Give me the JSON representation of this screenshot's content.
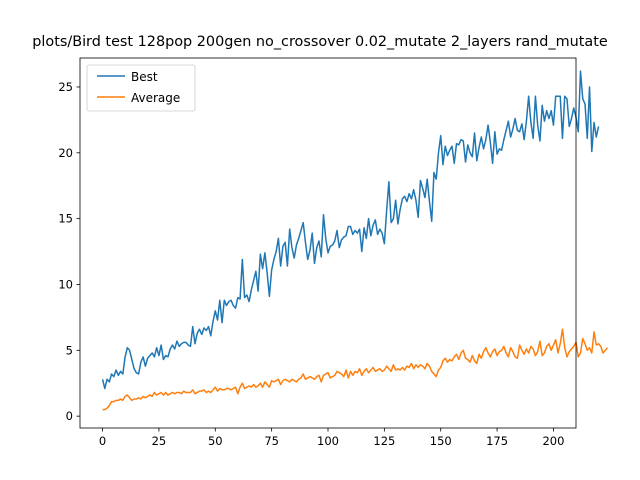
{
  "chart_data": {
    "type": "line",
    "title": "plots/Bird test 128pop 200gen no_crossover 0.02_mutate 2_layers rand_mutate",
    "xlabel": "",
    "ylabel": "",
    "xlim": [
      -10,
      210
    ],
    "ylim": [
      -0.9,
      27.2
    ],
    "xticks": [
      0,
      25,
      50,
      75,
      100,
      125,
      150,
      175,
      200
    ],
    "yticks": [
      0,
      5,
      10,
      15,
      20,
      25
    ],
    "grid": false,
    "legend_position": "upper-left",
    "series": [
      {
        "name": "Best",
        "color": "#1f77b4",
        "values": [
          2.8,
          2.1,
          2.8,
          2.6,
          3.2,
          3.0,
          3.5,
          3.1,
          3.4,
          3.2,
          4.5,
          5.2,
          5.0,
          4.3,
          3.6,
          3.3,
          3.2,
          4.1,
          4.5,
          3.8,
          4.4,
          4.6,
          4.8,
          4.5,
          5.2,
          4.6,
          5.4,
          4.3,
          4.6,
          4.5,
          5.1,
          5.4,
          5.1,
          5.7,
          5.3,
          5.5,
          5.6,
          5.6,
          5.4,
          5.3,
          6.8,
          5.5,
          6.3,
          6.6,
          6.2,
          6.7,
          6.5,
          6.8,
          6.1,
          7.2,
          8.0,
          7.3,
          8.8,
          7.1,
          8.8,
          8.4,
          8.7,
          8.8,
          8.4,
          8.2,
          9.0,
          8.9,
          11.9,
          9.0,
          9.2,
          8.7,
          9.6,
          10.3,
          11.0,
          9.5,
          12.3,
          11.2,
          12.4,
          10.9,
          9.1,
          11.1,
          11.9,
          12.5,
          13.5,
          11.4,
          12.9,
          13.2,
          11.4,
          14.2,
          12.8,
          12.0,
          13.0,
          13.5,
          14.1,
          14.7,
          13.2,
          11.9,
          12.6,
          13.9,
          11.6,
          12.8,
          13.3,
          12.1,
          15.3,
          13.5,
          12.4,
          12.9,
          13.0,
          13.3,
          14.1,
          12.8,
          13.4,
          13.6,
          13.7,
          14.4,
          14.4,
          13.8,
          14.1,
          13.9,
          14.2,
          12.5,
          14.3,
          13.5,
          15.0,
          13.7,
          14.5,
          14.9,
          13.8,
          14.2,
          13.9,
          13.1,
          15.6,
          17.8,
          14.7,
          15.0,
          16.4,
          14.6,
          15.7,
          16.5,
          16.7,
          16.3,
          16.9,
          16.5,
          17.2,
          16.4,
          15.1,
          17.9,
          17.3,
          16.6,
          18.0,
          16.3,
          14.8,
          18.5,
          18.0,
          20.0,
          21.3,
          19.1,
          20.5,
          19.8,
          20.2,
          20.5,
          19.2,
          20.7,
          20.6,
          21.0,
          20.9,
          19.3,
          20.6,
          20.0,
          19.7,
          21.5,
          19.4,
          20.4,
          21.2,
          20.3,
          21.0,
          22.1,
          20.8,
          19.2,
          21.6,
          19.9,
          20.3,
          20.2,
          21.0,
          21.7,
          22.4,
          21.2,
          21.8,
          22.6,
          21.7,
          21.6,
          22.2,
          21.0,
          22.4,
          24.3,
          22.3,
          21.1,
          24.3,
          22.1,
          20.9,
          23.6,
          22.4,
          23.2,
          22.6,
          23.2,
          22.1,
          24.3,
          24.3,
          24.3,
          21.1,
          24.3,
          24.1,
          22.0,
          22.6,
          23.4,
          22.7,
          21.6,
          26.2,
          24.1,
          23.7,
          21.1,
          25.0,
          20.1,
          22.3,
          21.2,
          22.0
        ]
      },
      {
        "name": "Average",
        "color": "#ff7f0e",
        "values": [
          0.5,
          0.5,
          0.6,
          0.8,
          1.1,
          1.1,
          1.2,
          1.2,
          1.3,
          1.2,
          1.5,
          1.6,
          1.4,
          1.2,
          1.3,
          1.3,
          1.4,
          1.3,
          1.5,
          1.4,
          1.5,
          1.6,
          1.5,
          1.8,
          1.6,
          1.7,
          1.8,
          1.6,
          1.8,
          1.6,
          1.7,
          1.8,
          1.7,
          1.8,
          1.8,
          1.7,
          1.9,
          1.8,
          1.8,
          1.8,
          2.0,
          1.7,
          1.8,
          1.9,
          1.9,
          2.0,
          1.8,
          1.9,
          1.8,
          2.0,
          2.2,
          1.9,
          2.1,
          2.0,
          2.0,
          2.1,
          2.1,
          2.0,
          2.1,
          2.2,
          1.7,
          2.2,
          2.5,
          2.1,
          2.2,
          2.3,
          2.2,
          2.4,
          2.2,
          2.3,
          2.5,
          2.2,
          2.6,
          2.4,
          2.2,
          2.7,
          2.6,
          2.7,
          2.8,
          2.4,
          2.7,
          2.8,
          2.7,
          2.6,
          2.8,
          2.7,
          2.6,
          2.8,
          2.9,
          3.2,
          2.8,
          2.9,
          3.0,
          2.9,
          2.8,
          3.0,
          3.1,
          2.6,
          3.1,
          3.2,
          3.3,
          2.9,
          3.0,
          3.1,
          3.4,
          3.3,
          3.2,
          3.0,
          3.5,
          2.9,
          3.4,
          3.1,
          3.4,
          3.3,
          3.6,
          3.1,
          3.4,
          3.6,
          3.3,
          3.5,
          3.7,
          3.4,
          3.5,
          3.6,
          3.4,
          3.5,
          3.8,
          3.6,
          3.4,
          3.9,
          3.5,
          3.6,
          3.5,
          3.7,
          3.5,
          3.8,
          3.7,
          4.0,
          3.6,
          3.9,
          3.7,
          3.9,
          3.8,
          3.6,
          4.0,
          3.8,
          3.4,
          3.2,
          3.0,
          3.5,
          3.7,
          4.2,
          4.4,
          4.1,
          4.3,
          4.2,
          4.5,
          4.7,
          4.3,
          4.8,
          5.0,
          4.4,
          4.3,
          4.1,
          4.6,
          4.2,
          4.0,
          4.7,
          4.4,
          4.9,
          5.2,
          4.8,
          4.5,
          4.9,
          5.1,
          4.6,
          4.9,
          5.0,
          5.3,
          4.8,
          4.5,
          5.2,
          4.9,
          4.5,
          4.4,
          5.4,
          5.0,
          4.7,
          5.1,
          4.8,
          5.3,
          5.1,
          4.6,
          4.9,
          5.7,
          4.6,
          4.8,
          5.3,
          5.5,
          5.0,
          5.4,
          5.8,
          4.8,
          5.5,
          6.6,
          5.2,
          4.5,
          4.9,
          5.1,
          5.3,
          5.6,
          4.5,
          4.8,
          5.9,
          5.5,
          5.0,
          5.2,
          4.8,
          6.4,
          5.4,
          5.5,
          5.3,
          4.8,
          5.0,
          5.2
        ]
      }
    ]
  }
}
